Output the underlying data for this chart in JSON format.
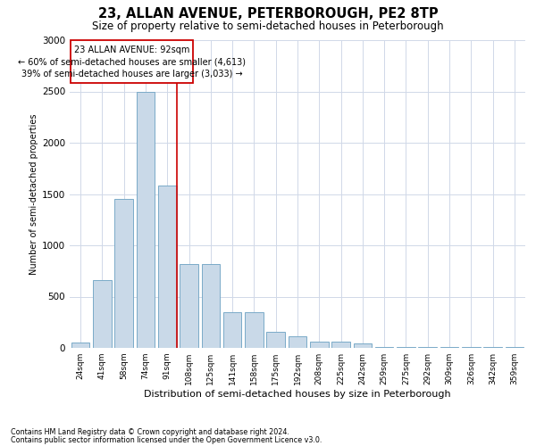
{
  "title": "23, ALLAN AVENUE, PETERBOROUGH, PE2 8TP",
  "subtitle": "Size of property relative to semi-detached houses in Peterborough",
  "xlabel": "Distribution of semi-detached houses by size in Peterborough",
  "ylabel": "Number of semi-detached properties",
  "footnote1": "Contains HM Land Registry data © Crown copyright and database right 2024.",
  "footnote2": "Contains public sector information licensed under the Open Government Licence v3.0.",
  "bar_labels": [
    "24sqm",
    "41sqm",
    "58sqm",
    "74sqm",
    "91sqm",
    "108sqm",
    "125sqm",
    "141sqm",
    "158sqm",
    "175sqm",
    "192sqm",
    "208sqm",
    "225sqm",
    "242sqm",
    "259sqm",
    "275sqm",
    "292sqm",
    "309sqm",
    "326sqm",
    "342sqm",
    "359sqm"
  ],
  "bar_values": [
    50,
    660,
    1450,
    2500,
    1580,
    820,
    820,
    350,
    350,
    160,
    115,
    65,
    65,
    40,
    10,
    10,
    10,
    5,
    5,
    5,
    5
  ],
  "bar_color": "#c9d9e8",
  "bar_edge_color": "#7aaac8",
  "highlight_index": 4,
  "highlight_line_color": "#cc0000",
  "annotation_box_color": "#cc0000",
  "annotation_text1": "23 ALLAN AVENUE: 92sqm",
  "annotation_text2": "← 60% of semi-detached houses are smaller (4,613)",
  "annotation_text3": "39% of semi-detached houses are larger (3,033) →",
  "ylim": [
    0,
    3000
  ],
  "yticks": [
    0,
    500,
    1000,
    1500,
    2000,
    2500,
    3000
  ],
  "grid_color": "#d0d8e8",
  "background_color": "#ffffff"
}
